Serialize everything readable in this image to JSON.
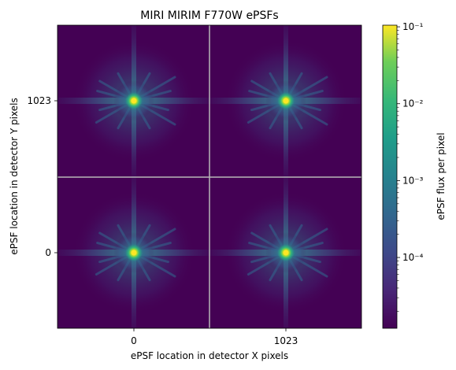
{
  "chart_data": {
    "type": "heatmap",
    "title": "MIRI MIRIM F770W ePSFs",
    "xlabel": "ePSF location in detector X pixels",
    "ylabel": "ePSF location in detector Y pixels",
    "x_ticks": [
      "0",
      "1023"
    ],
    "y_ticks": [
      "0",
      "1023"
    ],
    "grid": "2x2",
    "cells": [
      {
        "x": 0,
        "y": 0
      },
      {
        "x": 1023,
        "y": 0
      },
      {
        "x": 0,
        "y": 1023
      },
      {
        "x": 1023,
        "y": 1023
      }
    ],
    "colorbar": {
      "label": "ePSF flux per pixel",
      "scale": "log",
      "min": 1.2e-05,
      "max": 0.105,
      "tick_values": [
        0.0001,
        0.001,
        0.01,
        0.1
      ],
      "tick_labels": [
        "10⁻⁴",
        "10⁻³",
        "10⁻²",
        "10⁻¹"
      ],
      "colormap": "viridis"
    },
    "colors": {
      "background": "#440154",
      "divider": "#b8b8b8",
      "core": "#fde725"
    }
  }
}
